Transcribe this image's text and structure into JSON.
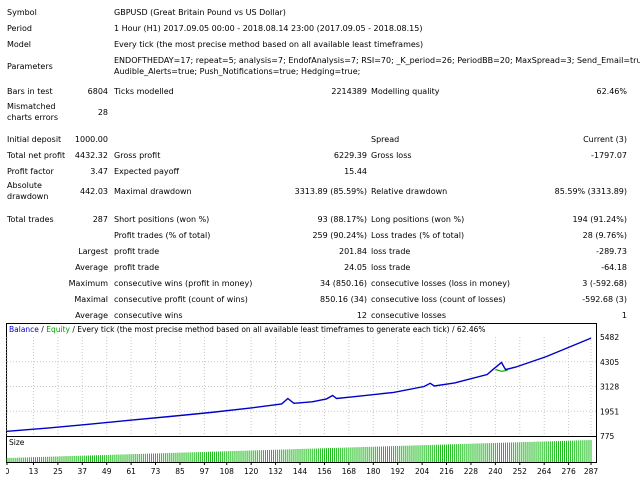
{
  "summary": {
    "symbol_label": "Symbol",
    "symbol_value": "GBPUSD (Great Britain Pound vs US Dollar)",
    "period_label": "Period",
    "period_value": "1 Hour (H1) 2017.09.05 00:00 - 2018.08.14 23:00 (2017.09.05 - 2018.08.15)",
    "model_label": "Model",
    "model_value": "Every tick (the most precise method based on all available least timeframes)",
    "parameters_label": "Parameters",
    "parameters_line1": "ENDOFTHEDAY=17; repeat=5; analysis=7; EndofAnalysis=7; RSI=70; _K_period=26; PeriodBB=20; MaxSpread=3; Send_Email=true;",
    "parameters_line2": "Audible_Alerts=true; Push_Notifications=true; Hedging=true;",
    "bars_label": "Bars in test",
    "bars_value": "6804",
    "ticks_label": "Ticks modelled",
    "ticks_value": "2214389",
    "quality_label": "Modelling quality",
    "quality_value": "62.46%",
    "mismatched_label1": "Mismatched",
    "mismatched_label2": "charts errors",
    "mismatched_value": "28"
  },
  "stats": {
    "initial_deposit_label": "Initial deposit",
    "initial_deposit_value": "1000.00",
    "spread_label": "Spread",
    "spread_value": "Current (3)",
    "net_profit_label": "Total net profit",
    "net_profit_value": "4432.32",
    "gross_profit_label": "Gross profit",
    "gross_profit_value": "6229.39",
    "gross_loss_label": "Gross loss",
    "gross_loss_value": "-1797.07",
    "profit_factor_label": "Profit factor",
    "profit_factor_value": "3.47",
    "expected_payoff_label": "Expected payoff",
    "expected_payoff_value": "15.44",
    "abs_dd_label1": "Absolute",
    "abs_dd_label2": "drawdown",
    "abs_dd_value": "442.03",
    "max_dd_label": "Maximal drawdown",
    "max_dd_value": "3313.89 (85.59%)",
    "rel_dd_label": "Relative drawdown",
    "rel_dd_value": "85.59% (3313.89)",
    "total_trades_label": "Total trades",
    "total_trades_value": "287",
    "short_label": "Short positions (won %)",
    "short_value": "93 (88.17%)",
    "long_label": "Long positions (won %)",
    "long_value": "194 (91.24%)",
    "profit_trades_label": "Profit trades (% of total)",
    "profit_trades_value": "259 (90.24%)",
    "loss_trades_label": "Loss trades (% of total)",
    "loss_trades_value": "28 (9.76%)",
    "largest_label": "Largest",
    "largest_profit_label": "profit trade",
    "largest_profit_value": "201.84",
    "largest_loss_label": "loss trade",
    "largest_loss_value": "-289.73",
    "average_label": "Average",
    "avg_profit_label": "profit trade",
    "avg_profit_value": "24.05",
    "avg_loss_label": "loss trade",
    "avg_loss_value": "-64.18",
    "maximum_label": "Maximum",
    "max_cons_wins_label": "consecutive wins (profit in money)",
    "max_cons_wins_value": "34 (850.16)",
    "max_cons_losses_label": "consecutive losses (loss in money)",
    "max_cons_losses_value": "3 (-592.68)",
    "maximal_label": "Maximal",
    "max_cons_profit_label": "consecutive profit (count of wins)",
    "max_cons_profit_value": "850.16 (34)",
    "max_cons_loss_label": "consecutive loss (count of losses)",
    "max_cons_loss_value": "-592.68 (3)",
    "average2_label": "Average",
    "avg_cons_wins_label": "consecutive wins",
    "avg_cons_wins_value": "12",
    "avg_cons_losses_label": "consecutive losses",
    "avg_cons_losses_value": "1"
  },
  "chart_header": {
    "balance": "Balance",
    "sep": " / ",
    "equity": "Equity",
    "rest": " / Every tick (the most precise method based on all available least timeframes to generate each tick) / 62.46%"
  },
  "size_label": "Size",
  "colors": {
    "balance": "#0000c8",
    "equity": "#00a000",
    "size_bars": "#00b400",
    "grid": "#c8c8c8"
  },
  "chart_data": {
    "type": "line",
    "series": [
      {
        "name": "Balance",
        "x": [
          0,
          20,
          40,
          60,
          80,
          100,
          120,
          135,
          138,
          141,
          150,
          157,
          160,
          162,
          170,
          190,
          205,
          208,
          210,
          220,
          236,
          239,
          243,
          245,
          250,
          265,
          280,
          287
        ],
        "values": [
          1000,
          1150,
          1330,
          1520,
          1700,
          1890,
          2110,
          2300,
          2560,
          2330,
          2400,
          2540,
          2700,
          2560,
          2640,
          2850,
          3130,
          3280,
          3150,
          3300,
          3700,
          3950,
          4270,
          3930,
          4050,
          4550,
          5150,
          5432
        ]
      },
      {
        "name": "Equity",
        "x": [
          240,
          243,
          246
        ],
        "values": [
          3940,
          3850,
          3900
        ]
      }
    ],
    "yticks": [
      "5482",
      "4305",
      "3128",
      "1951",
      "775"
    ],
    "xticks": [
      "0",
      "13",
      "25",
      "37",
      "49",
      "61",
      "73",
      "85",
      "97",
      "108",
      "120",
      "132",
      "144",
      "156",
      "168",
      "180",
      "192",
      "204",
      "216",
      "228",
      "240",
      "252",
      "264",
      "276",
      "287"
    ],
    "ylim": [
      775,
      5482
    ],
    "xlim": [
      0,
      287
    ]
  }
}
